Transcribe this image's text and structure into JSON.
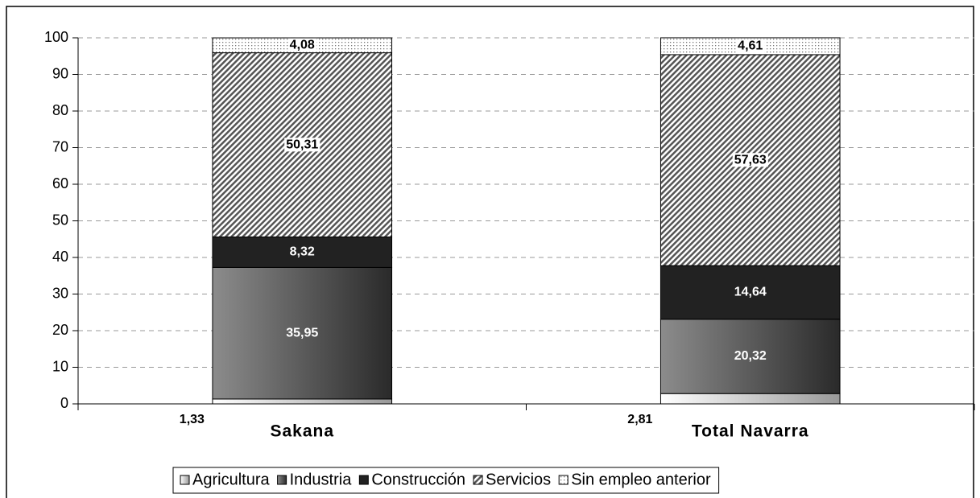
{
  "chart_data": {
    "type": "stacked_bar",
    "categories": [
      "Sakana",
      "Total Navarra"
    ],
    "series": [
      {
        "name": "Agricultura",
        "color": "#ffffff",
        "values": [
          1.33,
          2.81
        ],
        "value_labels": [
          "1,33",
          "2,81"
        ]
      },
      {
        "name": "Industria",
        "color": "#8c8c8c",
        "values": [
          35.95,
          20.32
        ],
        "value_labels": [
          "35,95",
          "20,32"
        ]
      },
      {
        "name": "Construcción",
        "color": "#222222",
        "values": [
          8.32,
          14.64
        ],
        "value_labels": [
          "8,32",
          "14,64"
        ]
      },
      {
        "name": "Servicios",
        "color": "#555555",
        "values": [
          50.31,
          57.63
        ],
        "value_labels": [
          "50,31",
          "57,63"
        ]
      },
      {
        "name": "Sin empleo anterior",
        "color": "#777777",
        "values": [
          4.08,
          4.61
        ],
        "value_labels": [
          "4,08",
          "4,61"
        ]
      }
    ],
    "ylim": [
      0,
      100
    ],
    "yticks": [
      0,
      10,
      20,
      30,
      40,
      50,
      60,
      70,
      80,
      90,
      100
    ],
    "grid": true,
    "legend": "bottom"
  }
}
